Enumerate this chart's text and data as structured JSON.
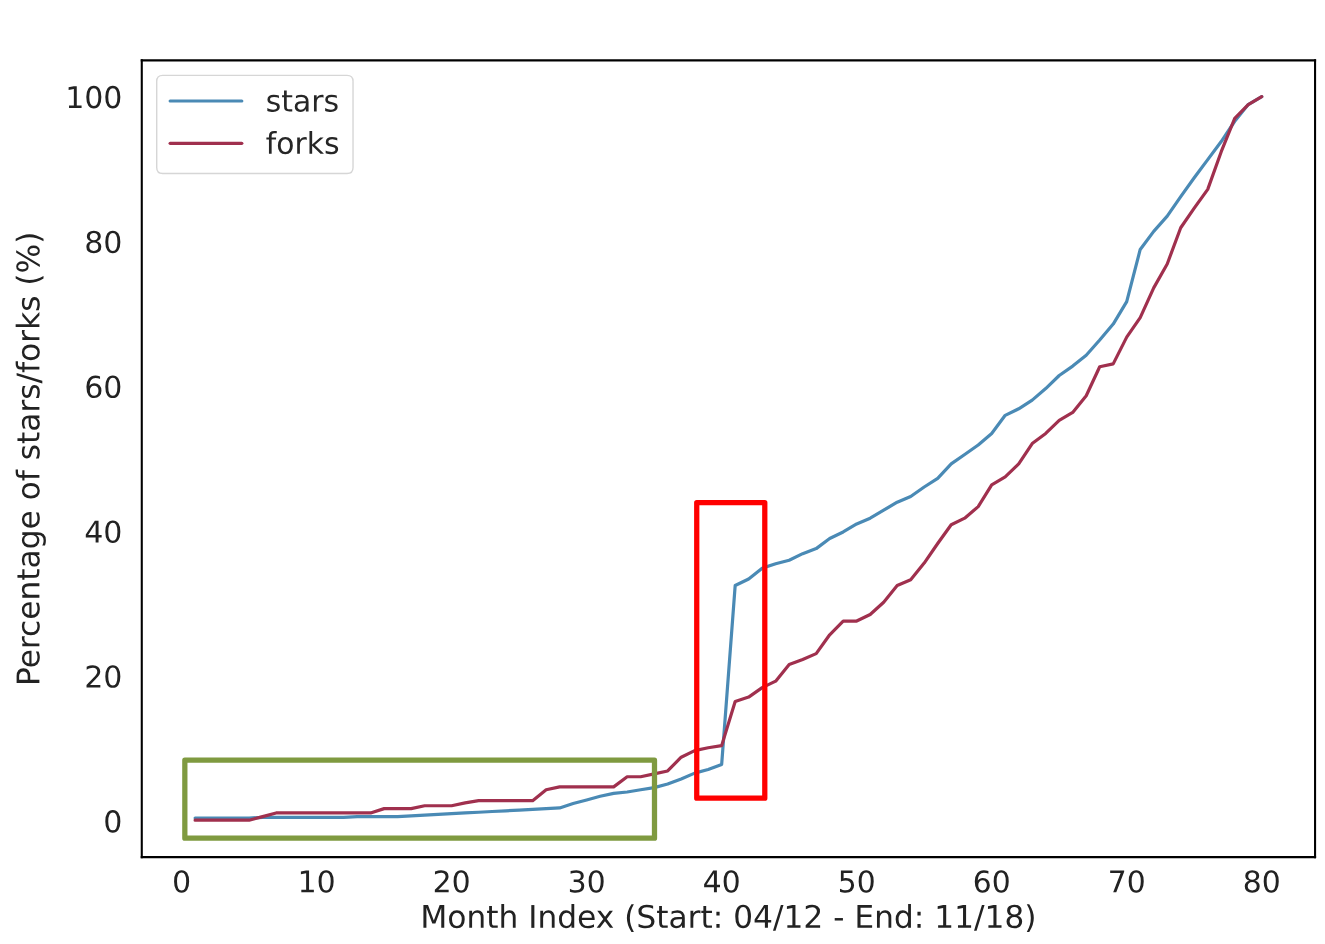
{
  "chart_data": {
    "type": "line",
    "xlabel": "Month Index (Start: 04/12 - End: 11/18)",
    "ylabel": "Percentage of stars/forks (%)",
    "x": [
      1,
      2,
      3,
      4,
      5,
      6,
      7,
      8,
      9,
      10,
      11,
      12,
      13,
      14,
      15,
      16,
      17,
      18,
      19,
      20,
      21,
      22,
      23,
      24,
      25,
      26,
      27,
      28,
      29,
      30,
      31,
      32,
      33,
      34,
      35,
      36,
      37,
      38,
      39,
      40,
      41,
      42,
      43,
      44,
      45,
      46,
      47,
      48,
      49,
      50,
      51,
      52,
      53,
      54,
      55,
      56,
      57,
      58,
      59,
      60,
      61,
      62,
      63,
      64,
      65,
      66,
      67,
      68,
      69,
      70,
      71,
      72,
      73,
      74,
      75,
      76,
      77,
      78,
      79,
      80
    ],
    "series": [
      {
        "name": "stars",
        "color": "#4a8ab5",
        "values": [
          0.4,
          0.4,
          0.4,
          0.4,
          0.4,
          0.5,
          0.5,
          0.5,
          0.5,
          0.5,
          0.5,
          0.5,
          0.6,
          0.6,
          0.6,
          0.6,
          0.7,
          0.8,
          0.9,
          1.0,
          1.1,
          1.2,
          1.3,
          1.4,
          1.5,
          1.6,
          1.7,
          1.8,
          2.4,
          2.9,
          3.4,
          3.8,
          4.0,
          4.3,
          4.6,
          5.1,
          5.8,
          6.6,
          7.1,
          7.8,
          32.5,
          33.4,
          34.9,
          35.5,
          36.0,
          36.9,
          37.6,
          39.0,
          39.9,
          41.0,
          41.8,
          42.9,
          44.0,
          44.8,
          46.1,
          47.3,
          49.3,
          50.6,
          51.9,
          53.5,
          56.0,
          56.9,
          58.1,
          59.7,
          61.5,
          62.8,
          64.3,
          66.4,
          68.6,
          71.7,
          78.9,
          81.4,
          83.5,
          86.2,
          88.8,
          91.3,
          93.8,
          96.6,
          98.9,
          100
        ]
      },
      {
        "name": "forks",
        "color": "#a0304e",
        "values": [
          0.1,
          0.1,
          0.1,
          0.1,
          0.1,
          0.6,
          1.1,
          1.1,
          1.1,
          1.1,
          1.1,
          1.1,
          1.1,
          1.1,
          1.7,
          1.7,
          1.7,
          2.1,
          2.1,
          2.1,
          2.5,
          2.8,
          2.8,
          2.8,
          2.8,
          2.8,
          4.3,
          4.7,
          4.7,
          4.7,
          4.7,
          4.7,
          6.1,
          6.1,
          6.5,
          6.9,
          8.8,
          9.7,
          10.1,
          10.4,
          16.5,
          17.1,
          18.4,
          19.3,
          21.6,
          22.3,
          23.1,
          25.7,
          27.6,
          27.6,
          28.5,
          30.2,
          32.5,
          33.3,
          35.6,
          38.3,
          40.9,
          41.8,
          43.4,
          46.4,
          47.5,
          49.3,
          52.1,
          53.5,
          55.3,
          56.4,
          58.7,
          62.7,
          63.1,
          66.8,
          69.5,
          73.6,
          76.9,
          81.9,
          84.6,
          87.2,
          92.4,
          97.0,
          98.9,
          100
        ]
      }
    ],
    "xlim": [
      -2.95,
      83.95
    ],
    "xticks": [
      0,
      10,
      20,
      30,
      40,
      50,
      60,
      70,
      80
    ],
    "ylim": [
      -5,
      105
    ],
    "yticks": [
      0,
      20,
      40,
      60,
      80,
      100
    ],
    "grid": false,
    "legend": "top left",
    "marker": "none",
    "line_style": "solid"
  }
}
